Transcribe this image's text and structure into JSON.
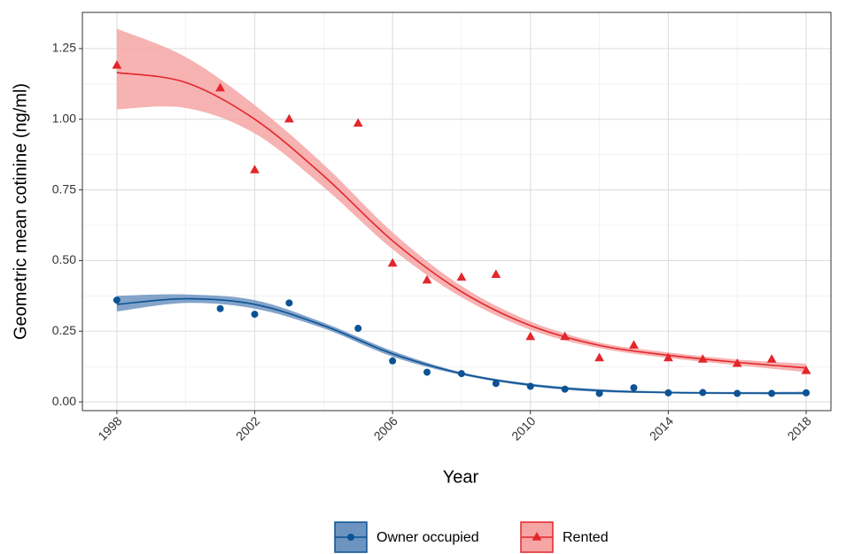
{
  "chart_data": {
    "type": "scatter",
    "xlabel": "Year",
    "ylabel": "Geometric mean cotinine (ng/ml)",
    "xlim": [
      1997,
      2018.72
    ],
    "ylim": [
      -0.031,
      1.378
    ],
    "xticks": [
      1998,
      2002,
      2006,
      2010,
      2014,
      2018
    ],
    "yticks": [
      {
        "value": 0,
        "label": "0.00"
      },
      {
        "value": 0.25,
        "label": "0.25"
      },
      {
        "value": 0.5,
        "label": "0.50"
      },
      {
        "value": 0.75,
        "label": "0.75"
      },
      {
        "value": 1,
        "label": "1.00"
      },
      {
        "value": 1.25,
        "label": "1.25"
      }
    ],
    "grid": true,
    "legend": "bottom",
    "x": [
      1998,
      2001,
      2002,
      2003,
      2005,
      2006,
      2007,
      2008,
      2009,
      2010,
      2011,
      2012,
      2013,
      2014,
      2015,
      2016,
      2017,
      2018
    ],
    "fit_x": [
      1998,
      2000,
      2002,
      2004,
      2006,
      2008,
      2010,
      2012,
      2014,
      2016,
      2018
    ],
    "series": [
      {
        "name": "Owner occupied",
        "color": "#0b5394",
        "band_color": "#6d93c0",
        "marker": "circle",
        "values": [
          0.36,
          0.33,
          0.31,
          0.35,
          0.26,
          0.145,
          0.105,
          0.1,
          0.065,
          0.055,
          0.045,
          0.03,
          0.05,
          0.032,
          0.033,
          0.03,
          0.03,
          0.032
        ],
        "fit": [
          0.345,
          0.365,
          0.345,
          0.27,
          0.17,
          0.1,
          0.06,
          0.04,
          0.033,
          0.031,
          0.031
        ],
        "lower": [
          0.32,
          0.35,
          0.33,
          0.26,
          0.16,
          0.095,
          0.055,
          0.035,
          0.03,
          0.027,
          0.026
        ],
        "upper": [
          0.375,
          0.38,
          0.36,
          0.28,
          0.18,
          0.105,
          0.065,
          0.045,
          0.037,
          0.035,
          0.036
        ]
      },
      {
        "name": "Rented",
        "color": "#e3262b",
        "band_color": "#f6a5a5",
        "marker": "triangle",
        "values": [
          1.19,
          1.11,
          0.82,
          1.0,
          0.985,
          0.49,
          0.43,
          0.44,
          0.45,
          0.23,
          0.23,
          0.155,
          0.2,
          0.155,
          0.15,
          0.135,
          0.15,
          0.11
        ],
        "fit": [
          1.165,
          1.13,
          1.0,
          0.8,
          0.57,
          0.39,
          0.27,
          0.2,
          0.165,
          0.14,
          0.12
        ],
        "lower": [
          1.035,
          1.04,
          0.95,
          0.76,
          0.54,
          0.37,
          0.255,
          0.19,
          0.155,
          0.13,
          0.105
        ],
        "upper": [
          1.32,
          1.22,
          1.05,
          0.84,
          0.6,
          0.41,
          0.285,
          0.21,
          0.175,
          0.15,
          0.135
        ]
      }
    ]
  }
}
